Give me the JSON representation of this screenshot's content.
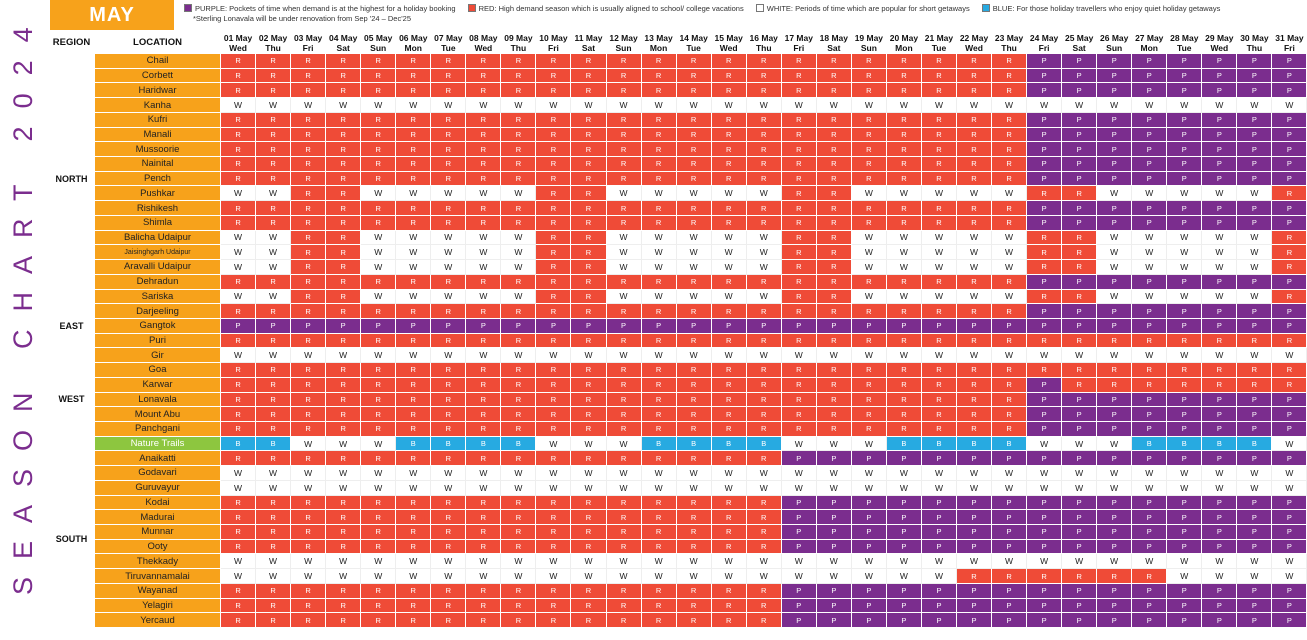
{
  "side_title": "SEASON CHART 2024",
  "month": "MAY",
  "legend": {
    "purple": "PURPLE: Pockets of time when demand is at the highest for a holiday booking",
    "red": "RED: High demand season which is usually aligned to school/ college vacations",
    "white": "WHITE: Periods of time which are popular for short getaways",
    "blue": "BLUE: For those holiday travellers who enjoy quiet holiday getaways",
    "note": "*Sterling Lonavala will be under renovation from Sep '24 – Dec'25"
  },
  "colors": {
    "R": "#ef4b37",
    "P": "#7b2d8e",
    "W": "#ffffff",
    "B": "#27aae1",
    "month": "#f7a21b",
    "location": "#f7a21b",
    "trails": "#8dc63f",
    "title": "#7b2d8e"
  },
  "header": {
    "region": "REGION",
    "location": "LOCATION"
  },
  "dates": [
    {
      "d": "01 May",
      "w": "Wed"
    },
    {
      "d": "02 May",
      "w": "Thu"
    },
    {
      "d": "03 May",
      "w": "Fri"
    },
    {
      "d": "04 May",
      "w": "Sat"
    },
    {
      "d": "05 May",
      "w": "Sun"
    },
    {
      "d": "06 May",
      "w": "Mon"
    },
    {
      "d": "07 May",
      "w": "Tue"
    },
    {
      "d": "08 May",
      "w": "Wed"
    },
    {
      "d": "09 May",
      "w": "Thu"
    },
    {
      "d": "10 May",
      "w": "Fri"
    },
    {
      "d": "11 May",
      "w": "Sat"
    },
    {
      "d": "12 May",
      "w": "Sun"
    },
    {
      "d": "13 May",
      "w": "Mon"
    },
    {
      "d": "14 May",
      "w": "Tue"
    },
    {
      "d": "15 May",
      "w": "Wed"
    },
    {
      "d": "16 May",
      "w": "Thu"
    },
    {
      "d": "17 May",
      "w": "Fri"
    },
    {
      "d": "18 May",
      "w": "Sat"
    },
    {
      "d": "19 May",
      "w": "Sun"
    },
    {
      "d": "20 May",
      "w": "Mon"
    },
    {
      "d": "21 May",
      "w": "Tue"
    },
    {
      "d": "22 May",
      "w": "Wed"
    },
    {
      "d": "23 May",
      "w": "Thu"
    },
    {
      "d": "24 May",
      "w": "Fri"
    },
    {
      "d": "25 May",
      "w": "Sat"
    },
    {
      "d": "26 May",
      "w": "Sun"
    },
    {
      "d": "27 May",
      "w": "Mon"
    },
    {
      "d": "28 May",
      "w": "Tue"
    },
    {
      "d": "29 May",
      "w": "Wed"
    },
    {
      "d": "30 May",
      "w": "Thu"
    },
    {
      "d": "31 May",
      "w": "Fri"
    }
  ],
  "regions": [
    {
      "name": "NORTH",
      "rows": [
        {
          "loc": "Chail",
          "codes": "RRRRRRRRRRRRRRRRRRRRRRRPPPPPPPP"
        },
        {
          "loc": "Corbett",
          "codes": "RRRRRRRRRRRRRRRRRRRRRRRPPPPPPPP"
        },
        {
          "loc": "Haridwar",
          "codes": "RRRRRRRRRRRRRRRRRRRRRRRPPPPPPPP"
        },
        {
          "loc": "Kanha",
          "codes": "WWWWWWWWWWWWWWWWWWWWWWWWWWWWWWW"
        },
        {
          "loc": "Kufri",
          "codes": "RRRRRRRRRRRRRRRRRRRRRRRPPPPPPPP"
        },
        {
          "loc": "Manali",
          "codes": "RRRRRRRRRRRRRRRRRRRRRRRPPPPPPPP"
        },
        {
          "loc": "Mussoorie",
          "codes": "RRRRRRRRRRRRRRRRRRRRRRRPPPPPPPP"
        },
        {
          "loc": "Nainital",
          "codes": "RRRRRRRRRRRRRRRRRRRRRRRPPPPPPPP"
        },
        {
          "loc": "Pench",
          "codes": "RRRRRRRRRRRRRRRRRRRRRRRPPPPPPPP"
        },
        {
          "loc": "Pushkar",
          "codes": "WWRRWWWWWRRWWWWWRRWWWWWRRWWWWWR"
        },
        {
          "loc": "Rishikesh",
          "codes": "RRRRRRRRRRRRRRRRRRRRRRRPPPPPPPP"
        },
        {
          "loc": "Shimla",
          "codes": "RRRRRRRRRRRRRRRRRRRRRRRPPPPPPPP"
        },
        {
          "loc": "Balicha Udaipur",
          "codes": "WWRRWWWWWRRWWWWWRRWWWWWRRWWWWWR"
        },
        {
          "loc": "Jaisinghgarh Udaipur",
          "codes": "WWRRWWWWWRRWWWWWRRWWWWWRRWWWWWR",
          "tiny": true
        },
        {
          "loc": "Aravalli Udaipur",
          "codes": "WWRRWWWWWRRWWWWWRRWWWWWRRWWWWWR"
        },
        {
          "loc": "Dehradun",
          "codes": "RRRRRRRRRRRRRRRRRRRRRRRPPPPPPPP"
        },
        {
          "loc": "Sariska",
          "codes": "WWRRWWWWWRRWWWWWRRWWWWWRRWWWWWR"
        }
      ]
    },
    {
      "name": "EAST",
      "rows": [
        {
          "loc": "Darjeeling",
          "codes": "RRRRRRRRRRRRRRRRRRRRRRRPPPPPPPP"
        },
        {
          "loc": "Gangtok",
          "codes": "PPPPPPPPPPPPPPPPPPPPPPPPPPPPPPP"
        },
        {
          "loc": "Puri",
          "codes": "RRRRRRRRRRRRRRRRRRRRRRRRRRRRRRR"
        }
      ]
    },
    {
      "name": "WEST",
      "rows": [
        {
          "loc": "Gir",
          "codes": "WWWWWWWWWWWWWWWWWWWWWWWWWWWWWWW"
        },
        {
          "loc": "Goa",
          "codes": "RRRRRRRRRRRRRRRRRRRRRRRRRRRRRRR"
        },
        {
          "loc": "Karwar",
          "codes": "RRRRRRRRRRRRRRRRRRRRRRRPRRRRRRR"
        },
        {
          "loc": "Lonavala",
          "codes": "RRRRRRRRRRRRRRRRRRRRRRRPPPPPPPP"
        },
        {
          "loc": "Mount Abu",
          "codes": "RRRRRRRRRRRRRRRRRRRRRRRPPPPPPPP"
        },
        {
          "loc": "Panchgani",
          "codes": "RRRRRRRRRRRRRRRRRRRRRRRPPPPPPPP"
        },
        {
          "loc": "Nature Trails",
          "codes": "BBWWWBBBBWWWBBBBWWWBBBBWWWBBBBW",
          "trails": true
        }
      ]
    },
    {
      "name": "SOUTH",
      "rows": [
        {
          "loc": "Anaikatti",
          "codes": "RRRRRRRRRRRRRRRRPPPPPPPPPPPPPPP"
        },
        {
          "loc": "Godavari",
          "codes": "WWWWWWWWWWWWWWWWWWWWWWWWWWWWWWW"
        },
        {
          "loc": "Guruvayur",
          "codes": "WWWWWWWWWWWWWWWWWWWWWWWWWWWWWWW"
        },
        {
          "loc": "Kodai",
          "codes": "RRRRRRRRRRRRRRRRPPPPPPPPPPPPPPP"
        },
        {
          "loc": "Madurai",
          "codes": "RRRRRRRRRRRRRRRRPPPPPPPPPPPPPPP"
        },
        {
          "loc": "Munnar",
          "codes": "RRRRRRRRRRRRRRRRPPPPPPPPPPPPPPP"
        },
        {
          "loc": "Ooty",
          "codes": "RRRRRRRRRRRRRRRRPPPPPPPPPPPPPPP"
        },
        {
          "loc": "Thekkady",
          "codes": "WWWWWWWWWWWWWWWWWWWWWWWWWWWWWWW"
        },
        {
          "loc": "Tiruvannamalai",
          "codes": "WWWWWWWWWWWWWWWWWWWWWRRRRRRWWWW"
        },
        {
          "loc": "Wayanad",
          "codes": "RRRRRRRRRRRRRRRRPPPPPPPPPPPPPPP"
        },
        {
          "loc": "Yelagiri",
          "codes": "RRRRRRRRRRRRRRRRPPPPPPPPPPPPPPP"
        },
        {
          "loc": "Yercaud",
          "codes": "RRRRRRRRRRRRRRRRPPPPPPPPPPPPPPP"
        }
      ]
    }
  ]
}
